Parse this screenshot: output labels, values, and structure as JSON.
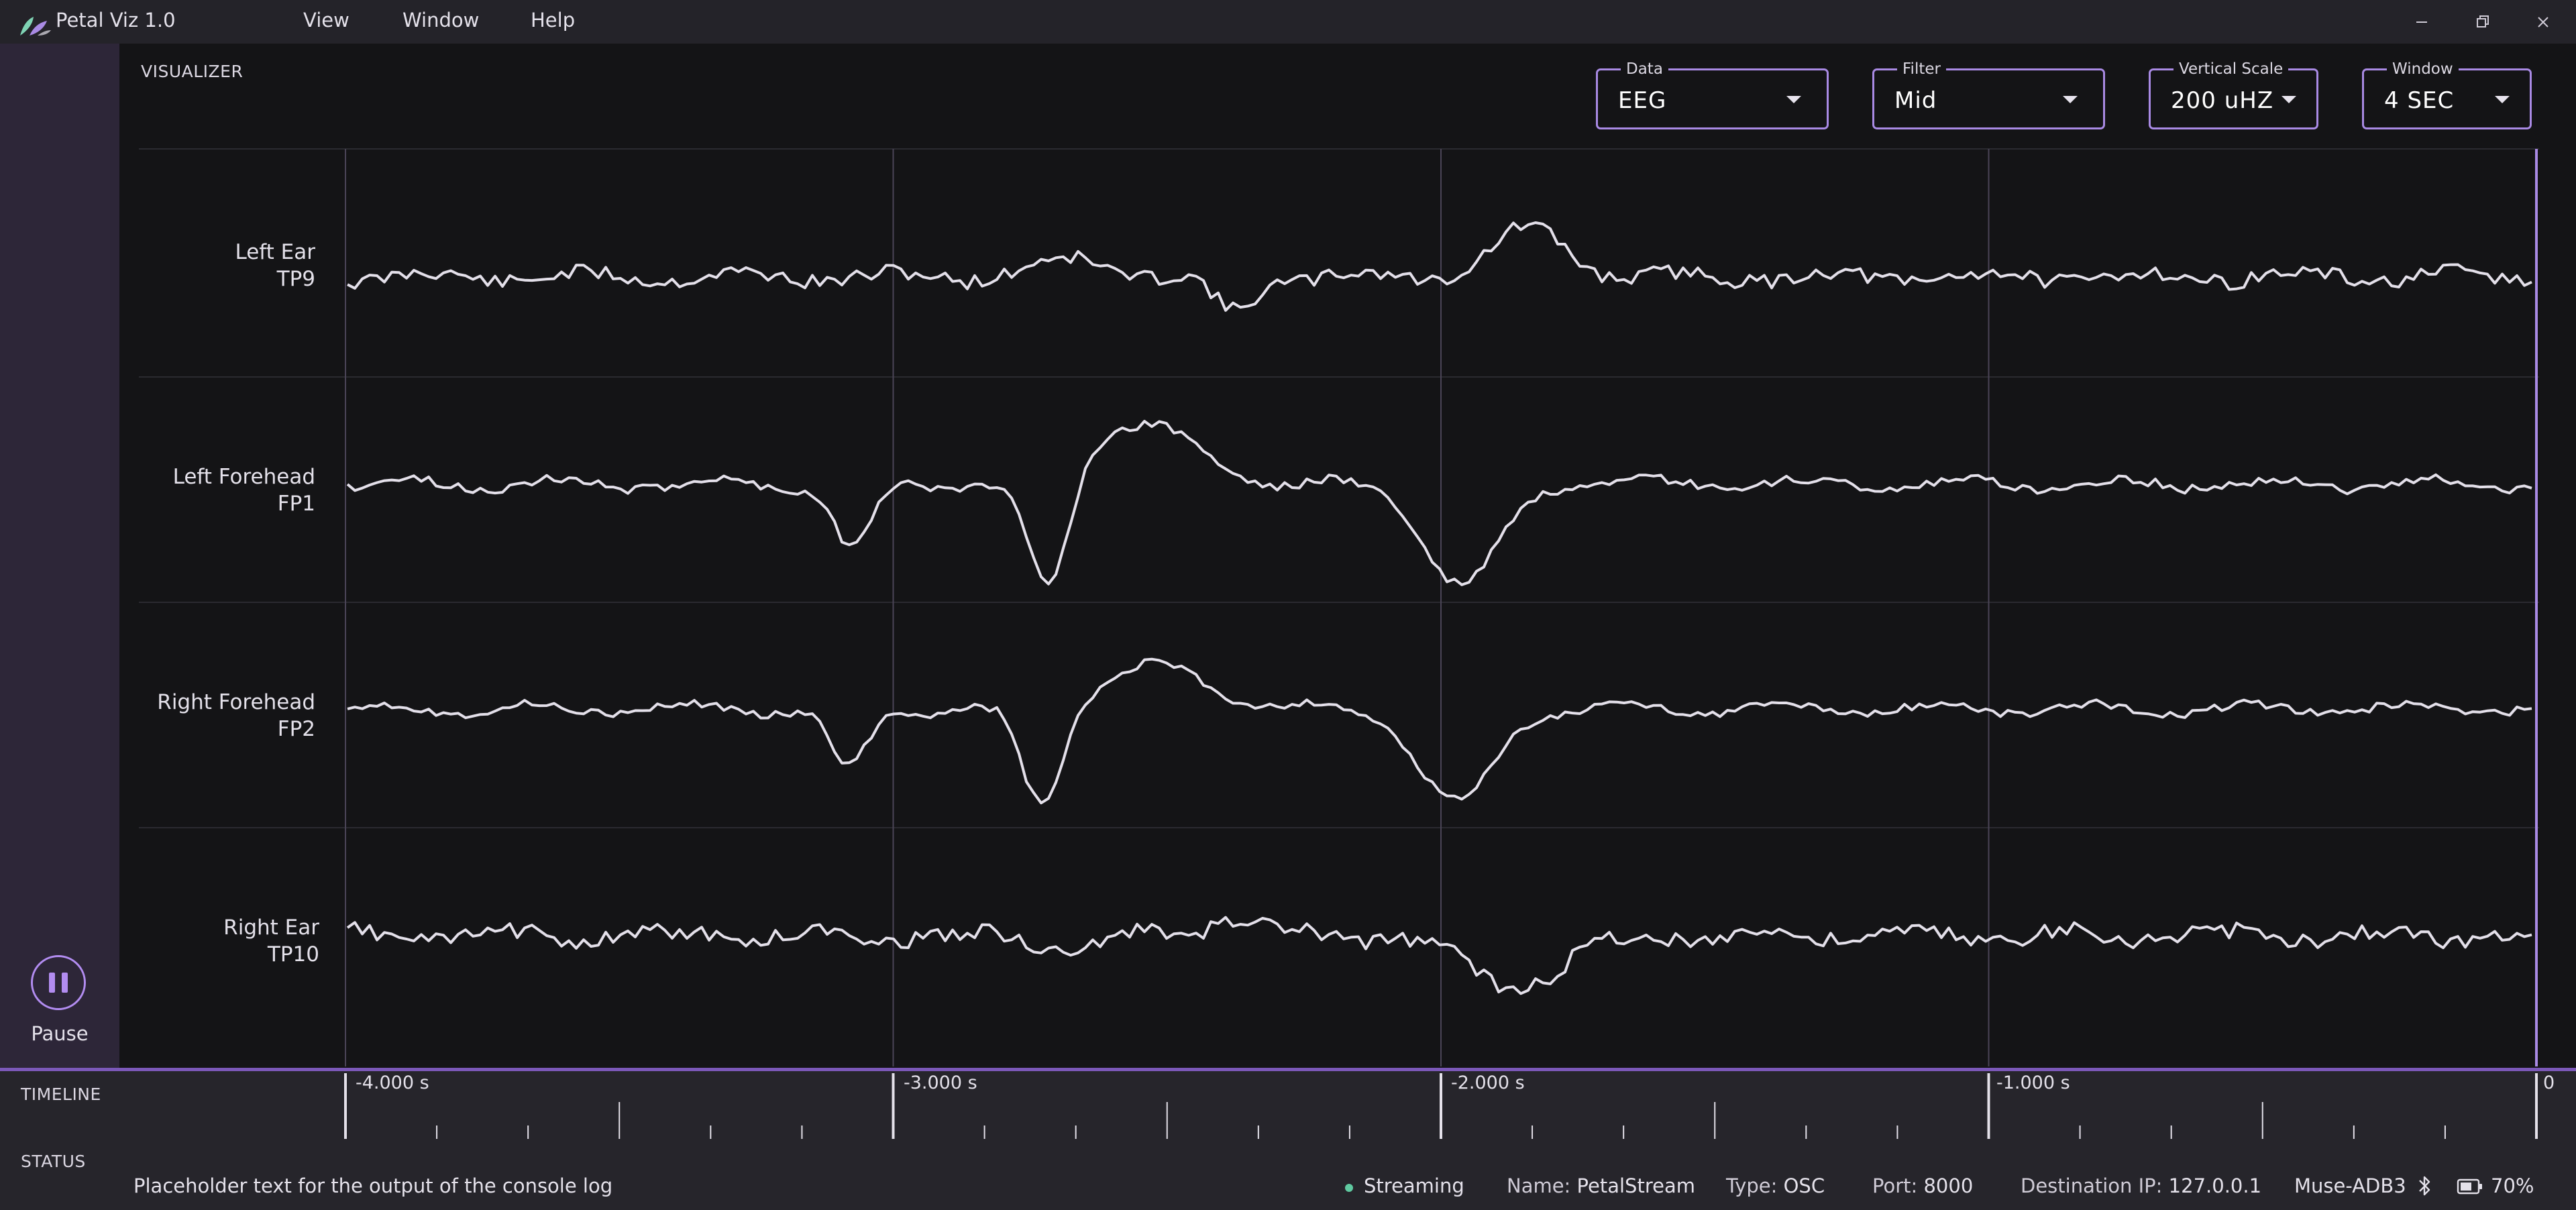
{
  "app": {
    "title": "Petal Viz 1.0"
  },
  "menu": {
    "items": [
      "View",
      "Window",
      "Help"
    ]
  },
  "visualizer": {
    "label": "VISUALIZER",
    "controls": {
      "data": {
        "label": "Data",
        "value": "EEG"
      },
      "filter": {
        "label": "Filter",
        "value": "Mid"
      },
      "vertical_scale": {
        "label": "Vertical Scale",
        "value": "200 uHZ"
      },
      "window": {
        "label": "Window",
        "value": "4 SEC"
      }
    },
    "channels": [
      {
        "name": "Left Ear",
        "code": "TP9"
      },
      {
        "name": "Left Forehead",
        "code": "FP1"
      },
      {
        "name": "Right Forehead",
        "code": "FP2"
      },
      {
        "name": "Right Ear",
        "code": "TP10"
      }
    ],
    "colors": {
      "trace": "#e4e0ea",
      "grid_major": "#4a4456",
      "grid_minor": "#2b2a30",
      "accent": "#a98ae4"
    }
  },
  "pause": {
    "label": "Pause",
    "icon": "pause-icon"
  },
  "timeline": {
    "label": "TIMELINE",
    "ticks": [
      "-4.000 s",
      "-3.000 s",
      "-2.000 s",
      "-1.000 s",
      "0"
    ]
  },
  "status": {
    "label": "STATUS",
    "console": "Placeholder text for the output of the console log",
    "streaming": "Streaming",
    "name_key": "Name:",
    "name_value": "PetalStream",
    "type_key": "Type:",
    "type_value": "OSC",
    "port_key": "Port:",
    "port_value": "8000",
    "dest_key": "Destination IP:",
    "dest_value": "127.0.0.1",
    "device": "Muse-ADB3",
    "battery": "70%"
  }
}
